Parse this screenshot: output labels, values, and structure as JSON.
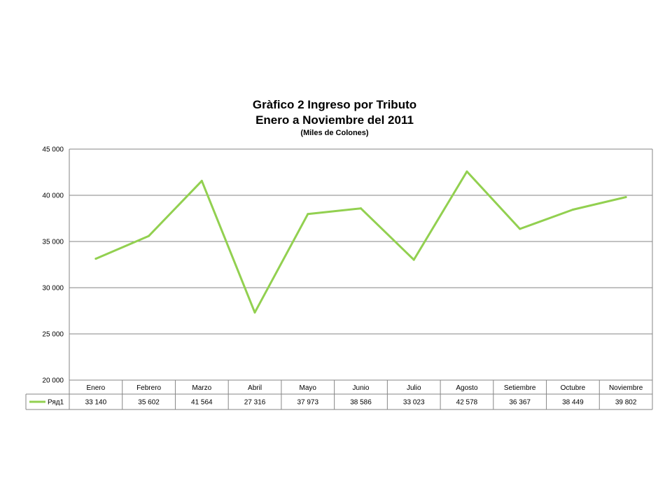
{
  "chart_data": {
    "type": "line",
    "title_line1": "Gràfico 2   Ingreso por Tributo",
    "title_line2": "Enero a Noviembre del 2011",
    "subtitle": "(Miles de Colones)",
    "categories": [
      "Enero",
      "Febrero",
      "Marzo",
      "Abril",
      "Mayo",
      "Junio",
      "Julio",
      "Agosto",
      "Setiembre",
      "Octubre",
      "Noviembre"
    ],
    "series": [
      {
        "name": "Ряд1",
        "values": [
          33140,
          35602,
          41564,
          27316,
          37973,
          38586,
          33023,
          42578,
          36367,
          38449,
          39802
        ],
        "value_labels": [
          "33 140",
          "35 602",
          "41 564",
          "27 316",
          "37 973",
          "38 586",
          "33 023",
          "42 578",
          "36 367",
          "38 449",
          "39 802"
        ],
        "color": "#92d050"
      }
    ],
    "ylim": [
      20000,
      45000
    ],
    "yticks": [
      20000,
      25000,
      30000,
      35000,
      40000,
      45000
    ],
    "ytick_labels": [
      "20 000",
      "25 000",
      "30 000",
      "35 000",
      "40 000",
      "45 000"
    ],
    "grid": true,
    "legend": "data-table"
  }
}
